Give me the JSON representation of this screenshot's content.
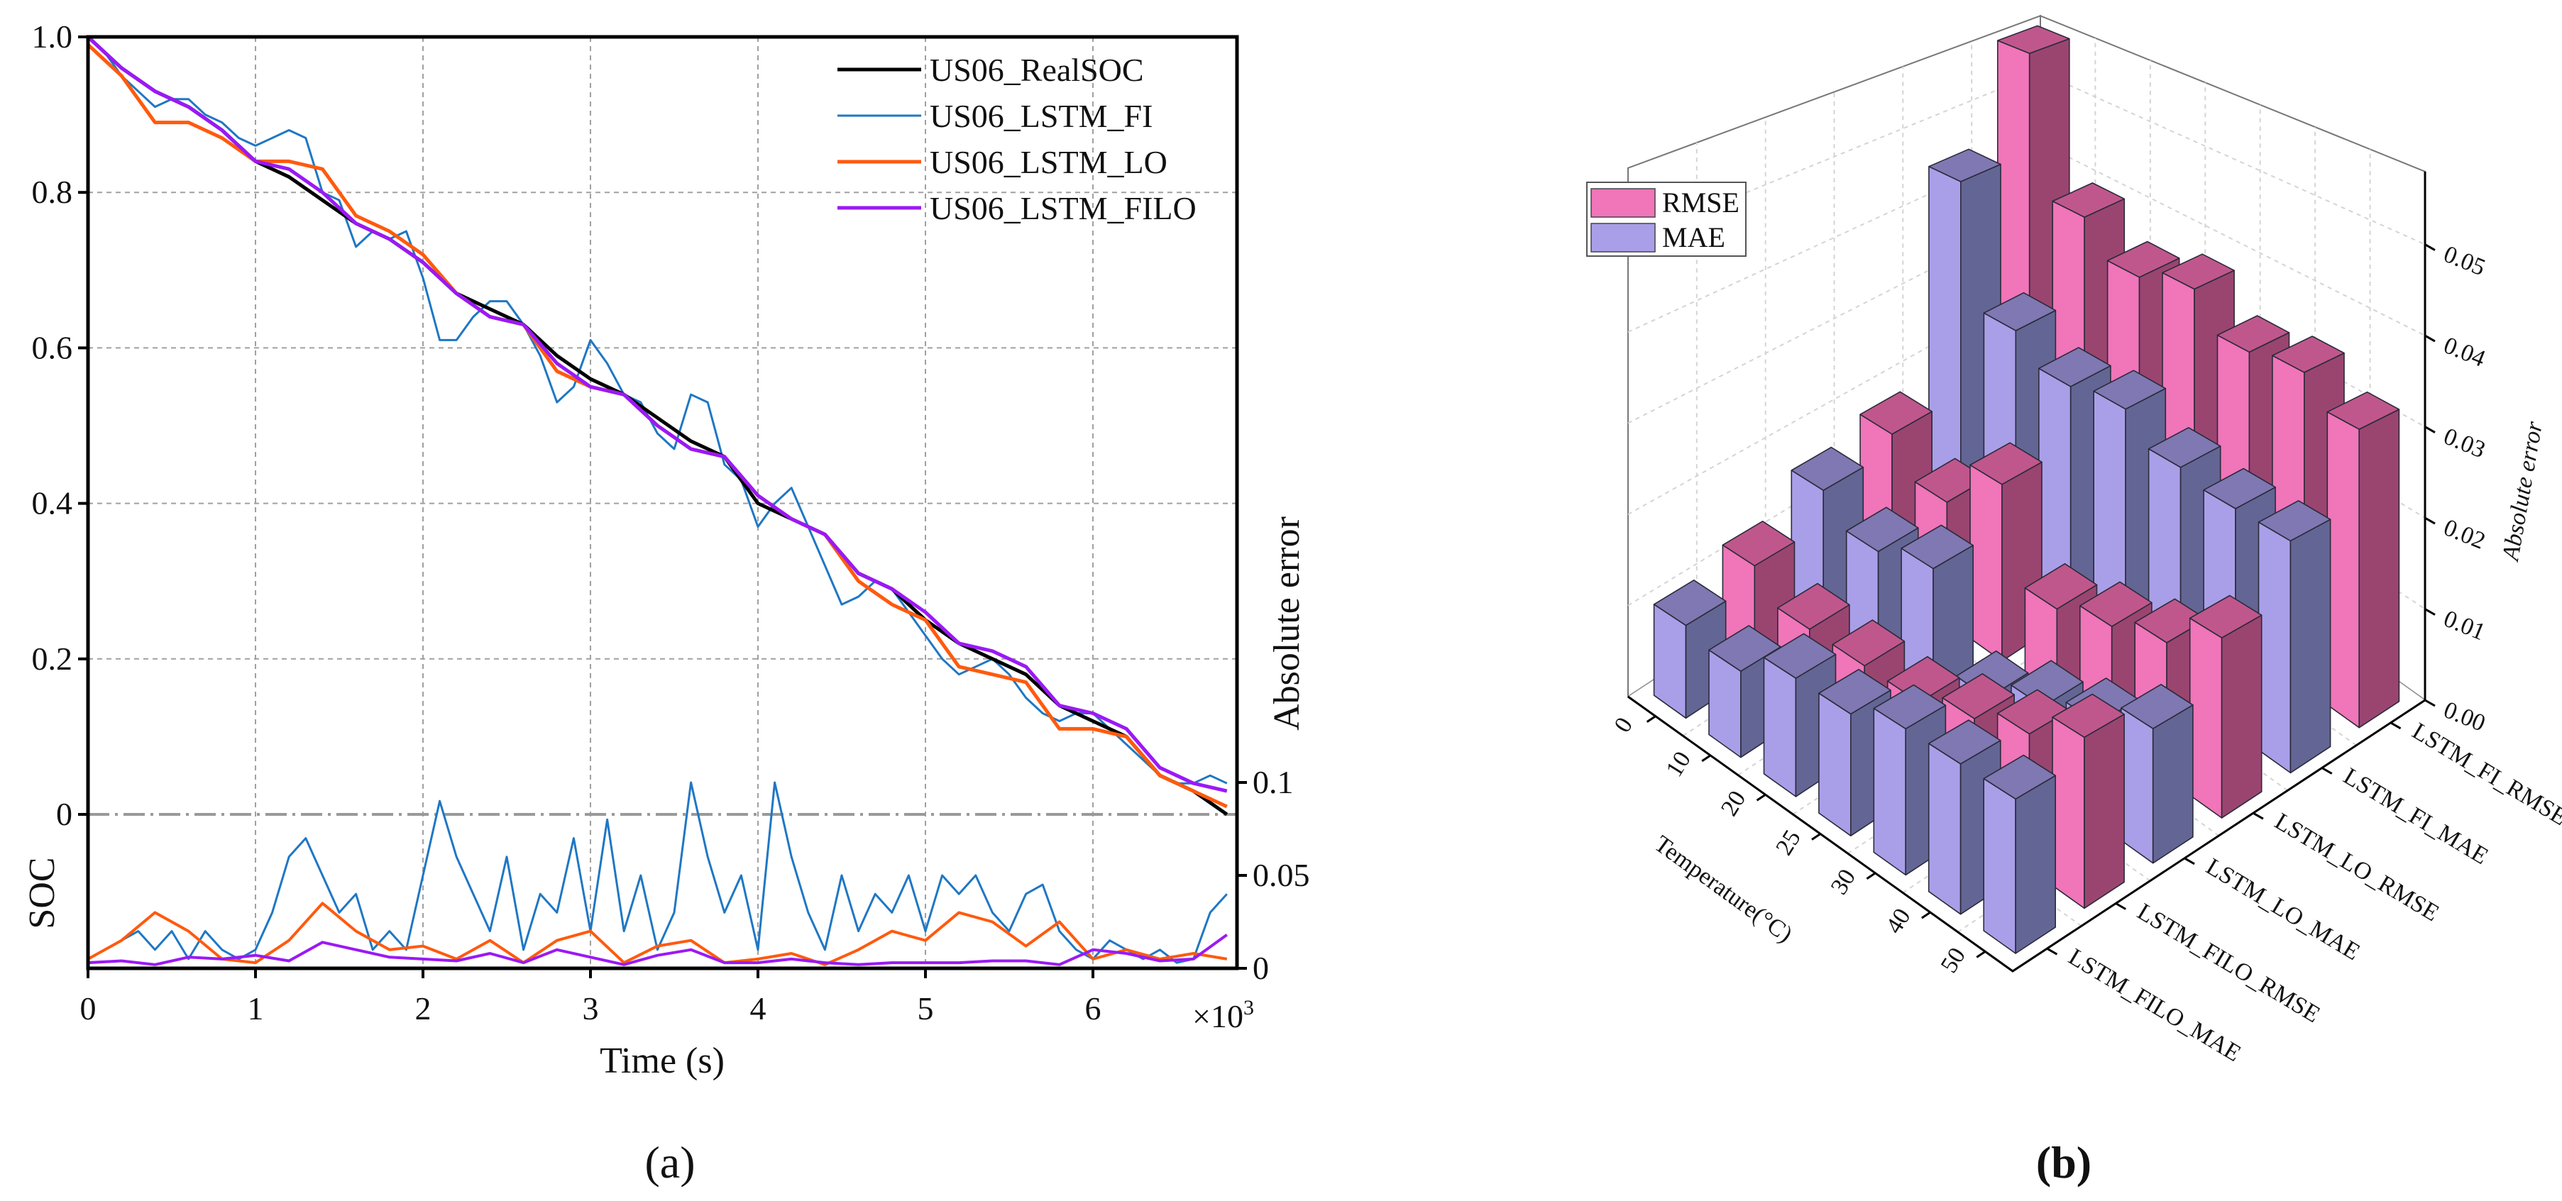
{
  "captions": {
    "a": "(a)",
    "b": "(b)"
  },
  "chart_data": [
    {
      "type": "line",
      "panel": "a",
      "xlabel": "Time (s)",
      "x_multiplier": "×10",
      "x_multiplier_exp": "3",
      "ylabel_left": "SOC",
      "ylabel_right": "Absolute error",
      "xlim": [
        0,
        6860
      ],
      "ylim_left": [
        0,
        1.0
      ],
      "x_ticks": [
        0,
        1,
        2,
        3,
        4,
        5,
        6
      ],
      "y_ticks_left": [
        "0",
        "0.2",
        "0.4",
        "0.6",
        "0.8",
        "1.0"
      ],
      "y_tick_values_left": [
        0,
        0.2,
        0.4,
        0.6,
        0.8,
        1.0
      ],
      "y_ticks_right": [
        "0",
        "0.05",
        "0.1"
      ],
      "y_tick_values_right": [
        0,
        0.05,
        0.1
      ],
      "grid": true,
      "legend_position": "top-right",
      "colors": {
        "US06_RealSOC": "#000000",
        "US06_LSTM_FI": "#1f77c4",
        "US06_LSTM_LO": "#ff5a0e",
        "US06_LSTM_FILO": "#9b19f5"
      },
      "soc_series": [
        {
          "name": "US06_RealSOC",
          "t0": 0,
          "dt": 200,
          "values": [
            1.0,
            0.96,
            0.93,
            0.91,
            0.88,
            0.84,
            0.82,
            0.79,
            0.76,
            0.74,
            0.71,
            0.67,
            0.65,
            0.63,
            0.59,
            0.56,
            0.54,
            0.51,
            0.48,
            0.46,
            0.4,
            0.38,
            0.36,
            0.31,
            0.29,
            0.25,
            0.22,
            0.2,
            0.18,
            0.14,
            0.12,
            0.1,
            0.05,
            0.03,
            0.0
          ]
        },
        {
          "name": "US06_LSTM_FI",
          "t0": 0,
          "dt": 100,
          "values": [
            1.0,
            0.98,
            0.95,
            0.93,
            0.91,
            0.92,
            0.92,
            0.9,
            0.89,
            0.87,
            0.86,
            0.87,
            0.88,
            0.87,
            0.8,
            0.79,
            0.73,
            0.75,
            0.74,
            0.75,
            0.69,
            0.61,
            0.61,
            0.64,
            0.66,
            0.66,
            0.63,
            0.59,
            0.53,
            0.55,
            0.61,
            0.58,
            0.54,
            0.53,
            0.49,
            0.47,
            0.54,
            0.53,
            0.45,
            0.43,
            0.37,
            0.4,
            0.42,
            0.37,
            0.32,
            0.27,
            0.28,
            0.3,
            0.29,
            0.26,
            0.23,
            0.2,
            0.18,
            0.19,
            0.2,
            0.18,
            0.15,
            0.13,
            0.12,
            0.13,
            0.13,
            0.11,
            0.09,
            0.07,
            0.05,
            0.04,
            0.04,
            0.05,
            0.04
          ]
        },
        {
          "name": "US06_LSTM_LO",
          "t0": 0,
          "dt": 200,
          "values": [
            0.99,
            0.95,
            0.89,
            0.89,
            0.87,
            0.84,
            0.84,
            0.83,
            0.77,
            0.75,
            0.72,
            0.67,
            0.64,
            0.63,
            0.57,
            0.55,
            0.54,
            0.5,
            0.47,
            0.46,
            0.41,
            0.38,
            0.36,
            0.3,
            0.27,
            0.25,
            0.19,
            0.18,
            0.17,
            0.11,
            0.11,
            0.1,
            0.05,
            0.03,
            0.01
          ]
        },
        {
          "name": "US06_LSTM_FILO",
          "t0": 0,
          "dt": 200,
          "values": [
            1.0,
            0.96,
            0.93,
            0.91,
            0.88,
            0.84,
            0.83,
            0.8,
            0.76,
            0.74,
            0.71,
            0.67,
            0.64,
            0.63,
            0.58,
            0.55,
            0.54,
            0.5,
            0.47,
            0.46,
            0.41,
            0.38,
            0.36,
            0.31,
            0.29,
            0.26,
            0.22,
            0.21,
            0.19,
            0.14,
            0.13,
            0.11,
            0.06,
            0.04,
            0.03
          ]
        }
      ],
      "error_series": [
        {
          "name": "US06_LSTM_FI",
          "t0": 0,
          "dt": 100,
          "values": [
            0.005,
            0.01,
            0.015,
            0.02,
            0.01,
            0.02,
            0.005,
            0.02,
            0.01,
            0.005,
            0.01,
            0.03,
            0.06,
            0.07,
            0.05,
            0.03,
            0.04,
            0.01,
            0.02,
            0.01,
            0.05,
            0.09,
            0.06,
            0.04,
            0.02,
            0.06,
            0.01,
            0.04,
            0.03,
            0.07,
            0.02,
            0.08,
            0.02,
            0.05,
            0.01,
            0.03,
            0.1,
            0.06,
            0.03,
            0.05,
            0.01,
            0.1,
            0.06,
            0.03,
            0.01,
            0.05,
            0.02,
            0.04,
            0.03,
            0.05,
            0.02,
            0.05,
            0.04,
            0.05,
            0.03,
            0.02,
            0.04,
            0.045,
            0.02,
            0.01,
            0.005,
            0.015,
            0.01,
            0.005,
            0.01,
            0.003,
            0.005,
            0.03,
            0.04
          ]
        },
        {
          "name": "US06_LSTM_LO",
          "t0": 0,
          "dt": 200,
          "values": [
            0.005,
            0.015,
            0.03,
            0.02,
            0.005,
            0.003,
            0.015,
            0.035,
            0.02,
            0.01,
            0.012,
            0.005,
            0.015,
            0.003,
            0.015,
            0.02,
            0.003,
            0.012,
            0.015,
            0.003,
            0.005,
            0.008,
            0.002,
            0.01,
            0.02,
            0.015,
            0.03,
            0.025,
            0.012,
            0.025,
            0.005,
            0.01,
            0.005,
            0.008,
            0.005
          ]
        },
        {
          "name": "US06_LSTM_FILO",
          "t0": 0,
          "dt": 200,
          "values": [
            0.003,
            0.004,
            0.002,
            0.006,
            0.005,
            0.007,
            0.004,
            0.014,
            0.01,
            0.006,
            0.005,
            0.004,
            0.008,
            0.003,
            0.01,
            0.006,
            0.002,
            0.007,
            0.01,
            0.003,
            0.003,
            0.005,
            0.003,
            0.002,
            0.003,
            0.003,
            0.003,
            0.004,
            0.004,
            0.002,
            0.01,
            0.008,
            0.004,
            0.005,
            0.018
          ]
        }
      ]
    },
    {
      "type": "bar3d",
      "panel": "b",
      "xlabel": "Temperature(°C)",
      "zlabel": "Absolute error",
      "temperatures": [
        "0",
        "10",
        "20",
        "25",
        "30",
        "40",
        "50"
      ],
      "z_ticks": [
        "0.00",
        "0.01",
        "0.02",
        "0.03",
        "0.04",
        "0.05"
      ],
      "z_tick_values": [
        0,
        0.01,
        0.02,
        0.03,
        0.04,
        0.05
      ],
      "zlim": [
        0,
        0.058
      ],
      "legend": [
        {
          "label": "RMSE",
          "color": "#f075b9"
        },
        {
          "label": "MAE",
          "color": "#a99fe8"
        }
      ],
      "legend_position": "top-left",
      "series": [
        {
          "name": "LSTM_FI_RMSE",
          "metric": "RMSE",
          "values": [
            0.058,
            0.04,
            0.036,
            0.038,
            0.034,
            0.035,
            0.032
          ]
        },
        {
          "name": "LSTM_FI_MAE",
          "metric": "MAE",
          "values": [
            0.045,
            0.03,
            0.027,
            0.028,
            0.025,
            0.024,
            0.024
          ]
        },
        {
          "name": "LSTM_LO_RMSE",
          "metric": "RMSE",
          "values": [
            0.018,
            0.014,
            0.02,
            0.01,
            0.012,
            0.014,
            0.018
          ]
        },
        {
          "name": "LSTM_LO_MAE",
          "metric": "MAE",
          "values": [
            0.016,
            0.013,
            0.015,
            0.005,
            0.008,
            0.01,
            0.013
          ]
        },
        {
          "name": "LSTM_FILO_RMSE",
          "metric": "RMSE",
          "values": [
            0.012,
            0.009,
            0.009,
            0.009,
            0.011,
            0.013,
            0.016
          ]
        },
        {
          "name": "LSTM_FILO_MAE",
          "metric": "MAE",
          "values": [
            0.01,
            0.009,
            0.012,
            0.012,
            0.014,
            0.014,
            0.014
          ]
        }
      ]
    }
  ]
}
